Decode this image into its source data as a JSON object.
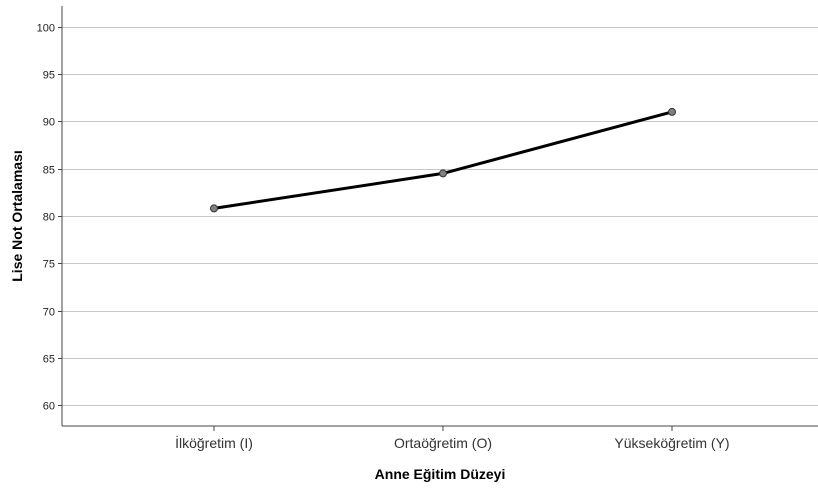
{
  "chart_data": {
    "type": "line",
    "categories": [
      "İlköğretim (I)",
      "Ortaöğretim (O)",
      "Yükseköğretim (Y)"
    ],
    "series": [
      {
        "values": [
          80.8,
          84.5,
          91.0
        ]
      }
    ],
    "xlabel": "Anne Eğitim Düzeyi",
    "ylabel": "Lise Not Ortalaması",
    "ylim": [
      57.8,
      102.2
    ],
    "yticks": [
      60,
      65,
      70,
      75,
      80,
      85,
      90,
      95,
      100
    ],
    "grid": true,
    "colors": {
      "line": "#000000",
      "marker": "#808080",
      "grid": "#c8c8c8",
      "axis": "#444444"
    }
  }
}
